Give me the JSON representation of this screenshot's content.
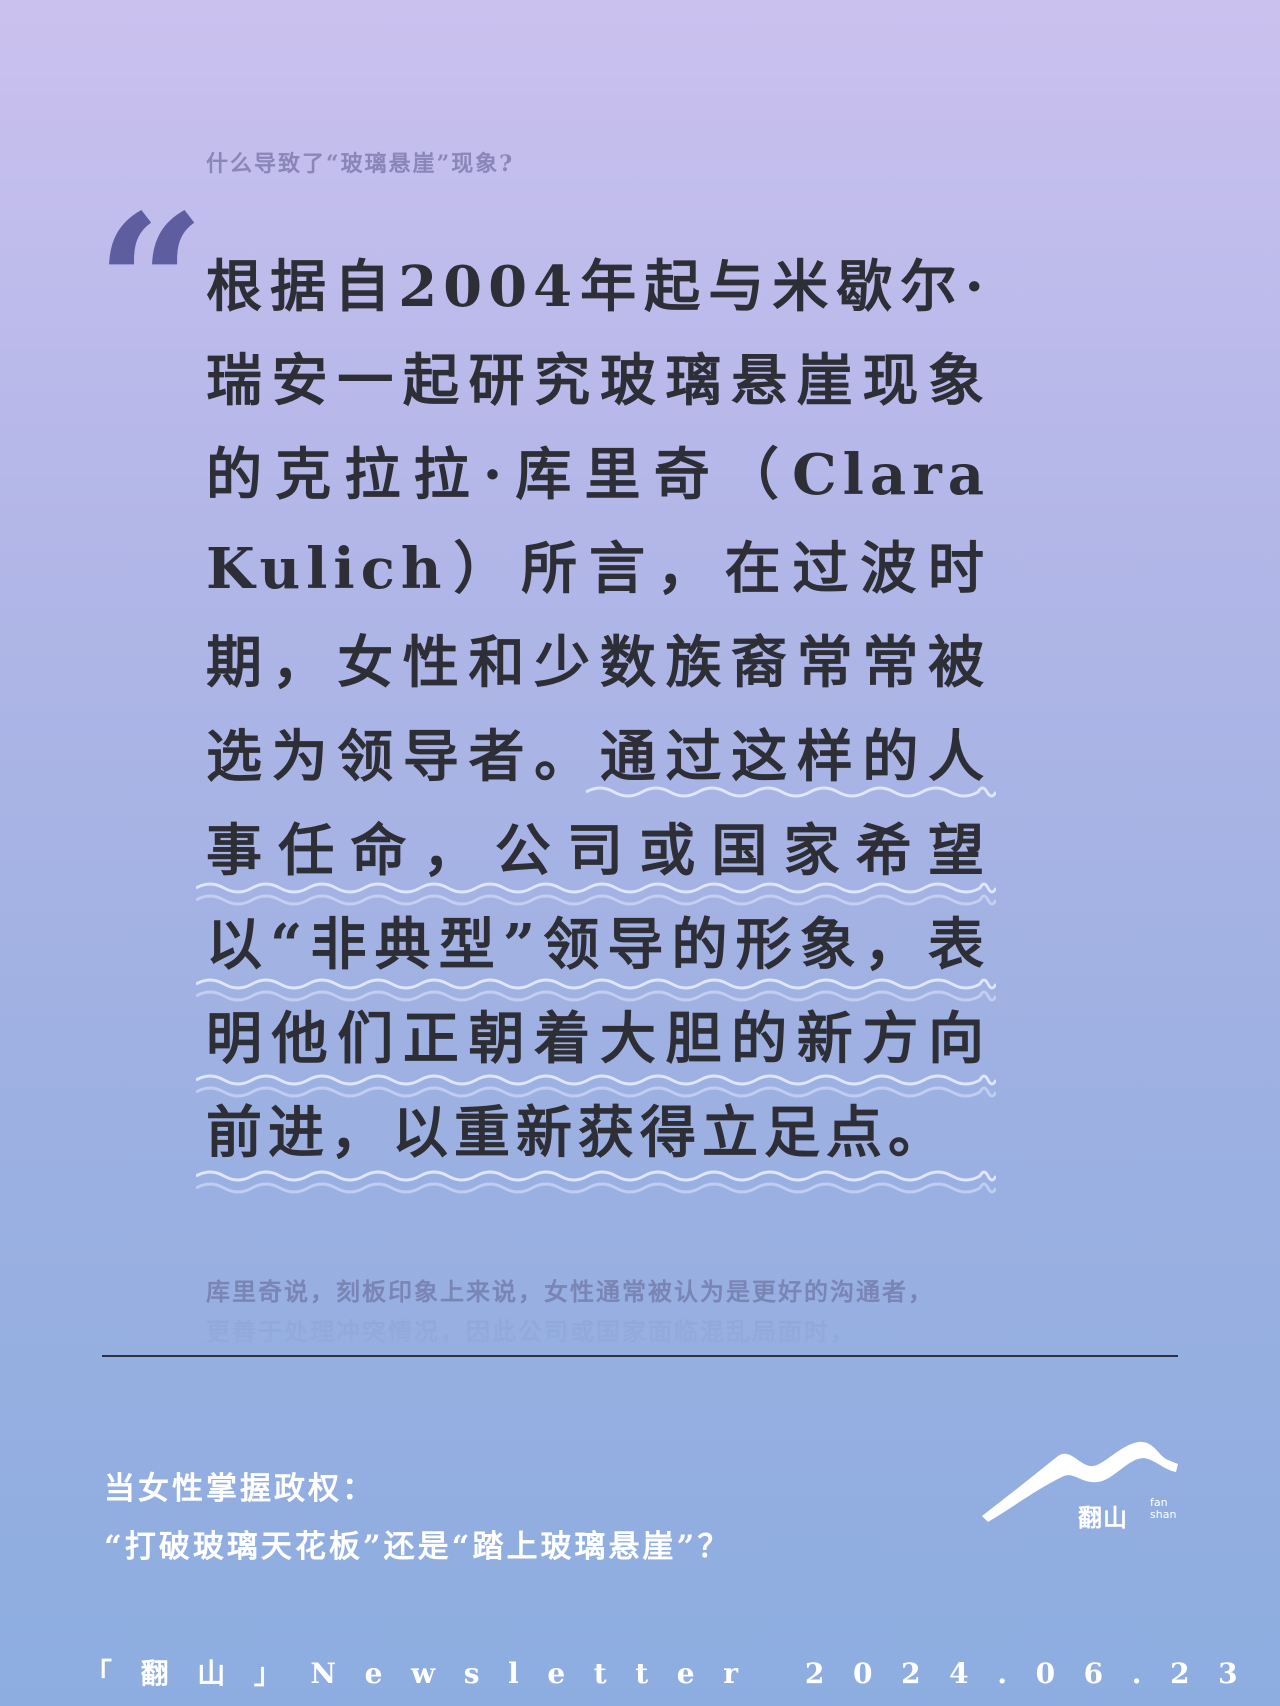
{
  "question": "什么导致了“玻璃悬崖”现象?",
  "quote_mark": "“",
  "quote": "根据自2004年起与米歇尔·瑞安一起研究玻璃悬崖现象的克拉拉·库里奇（Clara Kulich）所言，在过波时期，女性和少数族裔常常被选为领导者。通过这样的人事任命，公司或国家希望以“非典型”领导的形象，表明他们正朝着大胆的新方向前进，以重新获得立足点。",
  "followup": {
    "line1": "库里奇说，刻板印象上来说，女性通常被认为是更好的沟通者，",
    "line2": "更善于处理冲突情况，因此公司或国家面临混乱局面时，"
  },
  "article_title": {
    "line1": "当女性掌握政权：",
    "line2": "“打破玻璃天花板”还是“踏上玻璃悬崖”？"
  },
  "logo": {
    "name": "翻山",
    "sub": "fan shan"
  },
  "footer": "「翻山」Newsletter 2024.06.23",
  "colors": {
    "quote_text": "#2e2e36",
    "quote_mark": "#5e5d9f",
    "wave": "#e6ebff"
  }
}
